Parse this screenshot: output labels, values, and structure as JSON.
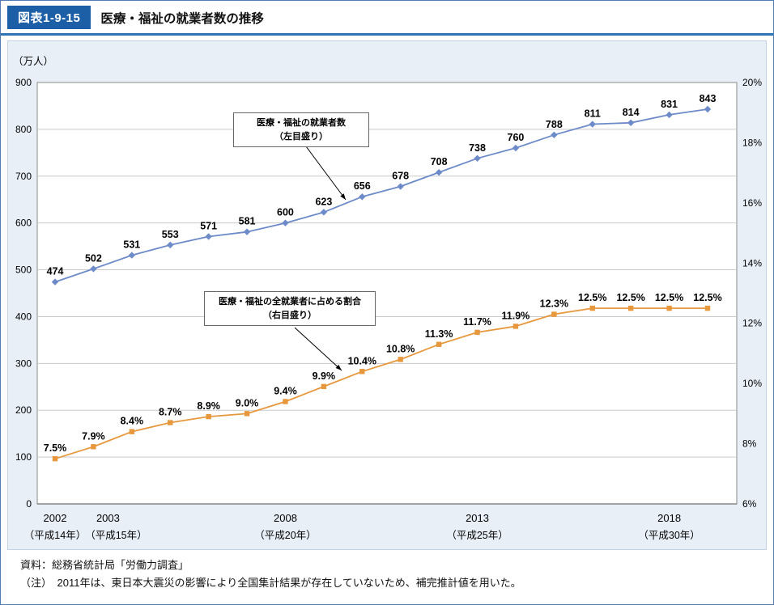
{
  "header": {
    "figure_no": "図表1-9-15",
    "title": "医療・福祉の就業者数の推移"
  },
  "chart_data": {
    "type": "line",
    "title": "医療・福祉の就業者数の推移",
    "unit_label_left": "（万人）",
    "grid": "horizontal",
    "legend": "none",
    "x": [
      2002,
      2003,
      2004,
      2005,
      2006,
      2007,
      2008,
      2009,
      2010,
      2011,
      2012,
      2013,
      2014,
      2015,
      2016,
      2017,
      2018,
      2019
    ],
    "x_tick_labels": [
      {
        "index": 0,
        "year": "2002",
        "era": "（平成14年）"
      },
      {
        "index": 1,
        "year": "2003",
        "era": "（平成15年）"
      },
      {
        "index": 6,
        "year": "2008",
        "era": "（平成20年）"
      },
      {
        "index": 11,
        "year": "2013",
        "era": "（平成25年）"
      },
      {
        "index": 16,
        "year": "2018",
        "era": "（平成30年）"
      }
    ],
    "left_axis": {
      "min": 0,
      "max": 900,
      "step": 100,
      "label": "（万人）"
    },
    "right_axis": {
      "min": 6,
      "max": 20,
      "step": 2,
      "suffix": "%"
    },
    "series": [
      {
        "name": "医療・福祉の就業者数（左目盛り）",
        "axis": "left",
        "color": "#6d8bc9",
        "marker": "diamond",
        "label_decimals": 0,
        "label_suffix": "",
        "values": [
          474,
          502,
          531,
          553,
          571,
          581,
          600,
          623,
          656,
          678,
          708,
          738,
          760,
          788,
          811,
          814,
          831,
          843
        ]
      },
      {
        "name": "医療・福祉の全就業者に占める割合（右目盛り）",
        "axis": "right",
        "color": "#e7973c",
        "marker": "square",
        "label_decimals": 1,
        "label_suffix": "%",
        "values": [
          7.5,
          7.9,
          8.4,
          8.7,
          8.9,
          9.0,
          9.4,
          9.9,
          10.4,
          10.8,
          11.3,
          11.7,
          11.9,
          12.3,
          12.5,
          12.5,
          12.5,
          12.5
        ]
      }
    ],
    "annotations": [
      {
        "lines": [
          "医療・福祉の就業者数",
          "（左目盛り）"
        ]
      },
      {
        "lines": [
          "医療・福祉の全就業者に占める割合",
          "（右目盛り）"
        ]
      }
    ]
  },
  "footer": {
    "source": "資料：総務省統計局「労働力調査」",
    "note": "（注）　2011年は、東日本大震災の影響により全国集計結果が存在していないため、補完推計値を用いた。"
  }
}
